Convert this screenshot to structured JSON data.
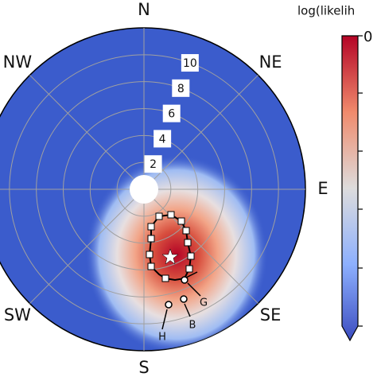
{
  "chart_data": {
    "type": "polar_heatmap",
    "colorbar_title": "log(likelih",
    "colorbar_ticks": [
      0
    ],
    "rlim": [
      0,
      12
    ],
    "rticks": [
      2,
      4,
      6,
      8,
      10
    ],
    "rtick_azimuth": 20,
    "grid": true,
    "directions": [
      {
        "label": "N",
        "azimuth": 0
      },
      {
        "label": "NE",
        "azimuth": 45
      },
      {
        "label": "E",
        "azimuth": 90
      },
      {
        "label": "SE",
        "azimuth": 135
      },
      {
        "label": "S",
        "azimuth": 180
      },
      {
        "label": "SW",
        "azimuth": 225
      },
      {
        "label": "NW",
        "azimuth": 315
      }
    ],
    "annotations": [
      "G",
      "B",
      "H"
    ]
  }
}
